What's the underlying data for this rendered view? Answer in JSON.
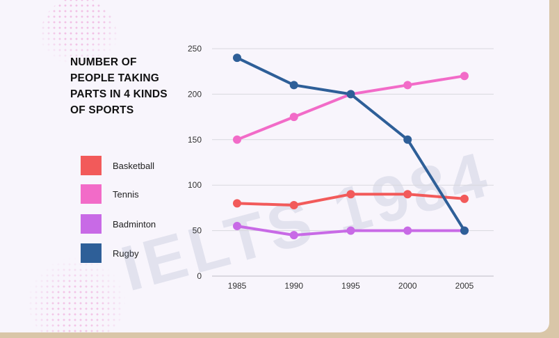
{
  "chart_data": {
    "type": "line",
    "title": "NUMBER OF PEOPLE TAKING PARTS IN 4 KINDS OF SPORTS",
    "xlabel": "",
    "ylabel": "",
    "x": [
      "1985",
      "1990",
      "1995",
      "2000",
      "2005"
    ],
    "ylim": [
      0,
      250
    ],
    "yticks": [
      0,
      50,
      100,
      150,
      200,
      250
    ],
    "grid": true,
    "legend_position": "left",
    "series": [
      {
        "name": "Basketball",
        "color": "#f25a5a",
        "values": [
          80,
          78,
          90,
          90,
          85
        ]
      },
      {
        "name": "Tennis",
        "color": "#f26bc8",
        "values": [
          150,
          175,
          200,
          210,
          220
        ]
      },
      {
        "name": "Badminton",
        "color": "#c86ae6",
        "values": [
          55,
          45,
          50,
          50,
          50
        ]
      },
      {
        "name": "Rugby",
        "color": "#2e5f98",
        "values": [
          240,
          210,
          200,
          150,
          50
        ]
      }
    ]
  },
  "watermark": {
    "text": "IELTS 1984"
  }
}
